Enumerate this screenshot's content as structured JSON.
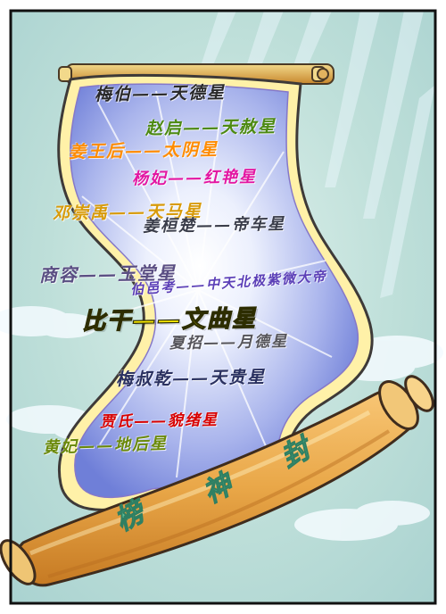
{
  "scroll_lines": [
    {
      "text": "梅伯——天德星",
      "color": "#2a2a2a"
    },
    {
      "text": "赵启——天赦星",
      "color": "#4d8a12"
    },
    {
      "text": "姜王后——太阴星",
      "color": "#ff8c00"
    },
    {
      "text": "杨妃——红艳星",
      "color": "#e317a2"
    },
    {
      "text": "邓崇禹——天马星",
      "color": "#d89b0a"
    },
    {
      "text": "姜桓楚——帝车星",
      "color": "#3a3d4a"
    },
    {
      "text": "商容——玉堂星",
      "color": "#5a4e83"
    },
    {
      "text": "伯邑考——中天北极紫微大帝",
      "color": "#5b3fb7"
    },
    {
      "text": "比干——文曲星",
      "color": "#f7e800"
    },
    {
      "text": "夏招——月德星",
      "color": "#55545a"
    },
    {
      "text": "梅叔乾——天贵星",
      "color": "#2a3160"
    },
    {
      "text": "贾氏——貌绪星",
      "color": "#d80000"
    },
    {
      "text": "黄妃——地后星",
      "color": "#6b8a0b"
    }
  ],
  "roller_glyphs": [
    {
      "text": "榜",
      "color": "#5fc29a"
    },
    {
      "text": "神",
      "color": "#5fc29a"
    },
    {
      "text": "封",
      "color": "#5fc29a"
    }
  ]
}
